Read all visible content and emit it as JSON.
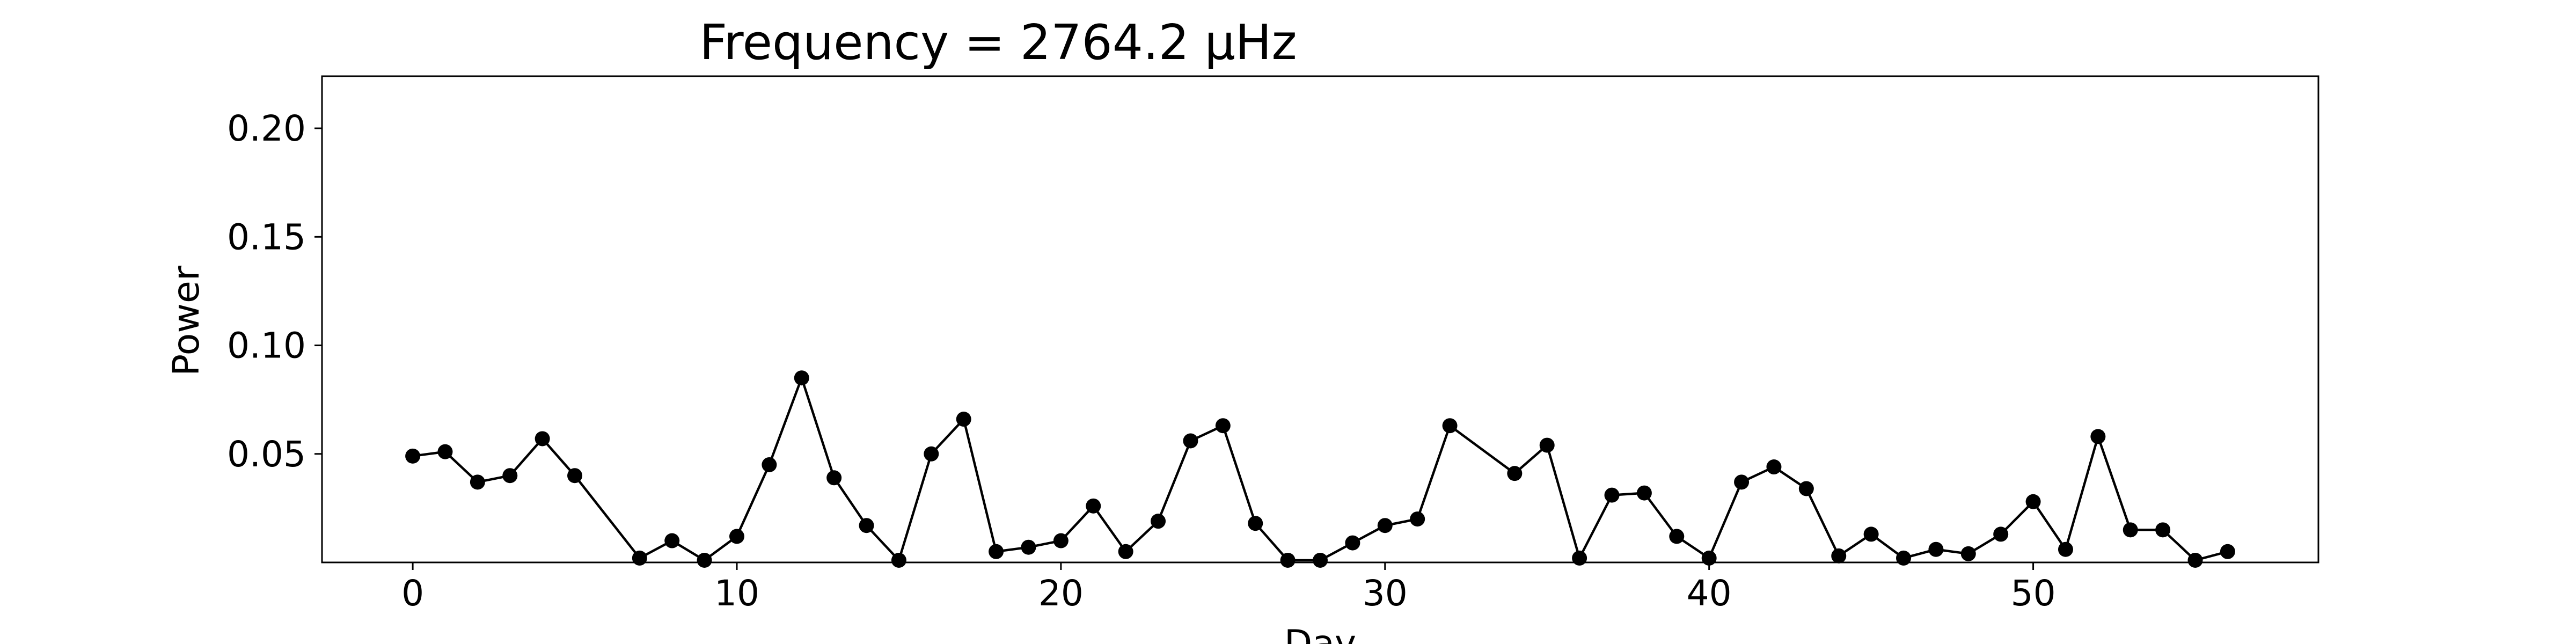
{
  "chart_data": {
    "type": "line",
    "title": "Frequency = 2764.2 μHz",
    "xlabel": "Day",
    "ylabel": "Power",
    "xlim": [
      -2.8,
      58.8
    ],
    "ylim": [
      0.0,
      0.224
    ],
    "xticks": [
      0,
      10,
      20,
      30,
      40,
      50
    ],
    "yticks": [
      0.05,
      0.1,
      0.15,
      0.2
    ],
    "ytick_labels": [
      "0.05",
      "0.10",
      "0.15",
      "0.20"
    ],
    "grid": false,
    "legend": "none",
    "series": [
      {
        "color": "#000000",
        "marker": "circle",
        "x": [
          0,
          1,
          2,
          3,
          4,
          5,
          7,
          8,
          9,
          10,
          11,
          12,
          13,
          14,
          15,
          16,
          17,
          18,
          19,
          20,
          21,
          22,
          23,
          24,
          25,
          26,
          27,
          28,
          29,
          30,
          31,
          32,
          34,
          35,
          36,
          37,
          38,
          39,
          40,
          41,
          42,
          43,
          44,
          45,
          46,
          47,
          48,
          49,
          50,
          51,
          52,
          53,
          54,
          55,
          56
        ],
        "y": [
          0.049,
          0.051,
          0.037,
          0.04,
          0.057,
          0.04,
          0.002,
          0.01,
          0.001,
          0.012,
          0.045,
          0.085,
          0.039,
          0.017,
          0.001,
          0.05,
          0.066,
          0.005,
          0.007,
          0.01,
          0.026,
          0.005,
          0.019,
          0.056,
          0.063,
          0.018,
          0.001,
          0.001,
          0.009,
          0.017,
          0.02,
          0.063,
          0.041,
          0.054,
          0.002,
          0.031,
          0.032,
          0.012,
          0.002,
          0.037,
          0.044,
          0.034,
          0.003,
          0.013,
          0.002,
          0.006,
          0.004,
          0.013,
          0.028,
          0.006,
          0.058,
          0.015,
          0.015,
          0.001,
          0.005
        ]
      }
    ]
  }
}
